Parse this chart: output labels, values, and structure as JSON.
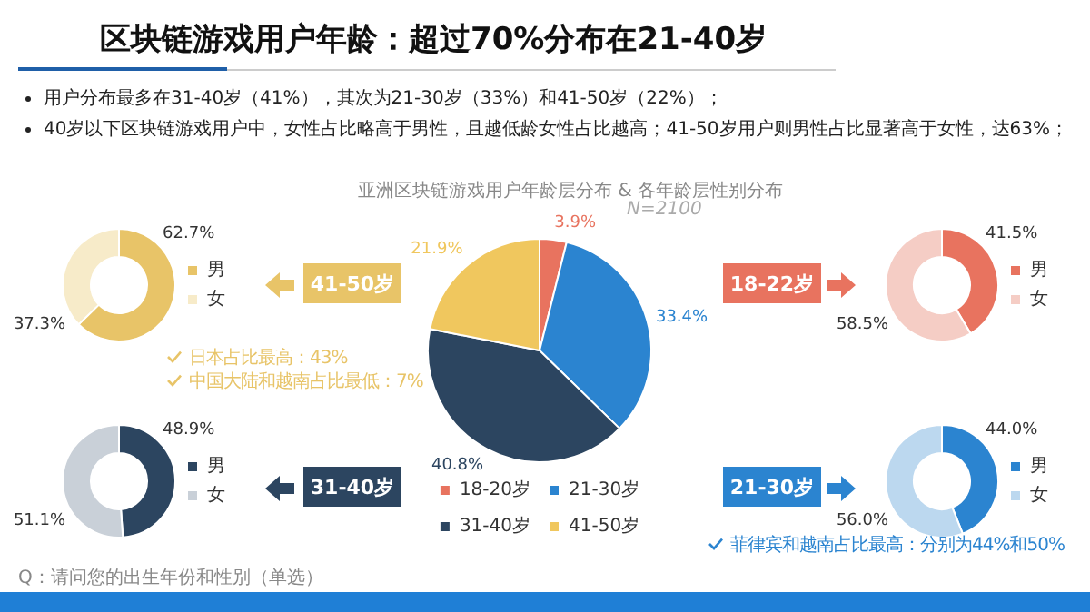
{
  "chart_data": [
    {
      "type": "pie",
      "title": "区块链游戏用户年龄：超过70%分布在21-40岁",
      "subtitle": "亚洲区块链游戏用户年龄层分布 & 各年龄层性别分布",
      "categories": [
        "18-20岁",
        "21-30岁",
        "31-40岁",
        "41-50岁"
      ],
      "values": [
        3.9,
        33.4,
        40.8,
        21.9
      ],
      "colors": [
        "#e8735f",
        "#2b84d0",
        "#2c4560",
        "#f0c75e"
      ],
      "value_labels": [
        "3.9%",
        "33.4%",
        "40.8%",
        "21.9%"
      ],
      "legend": "bottom",
      "annotations": [
        "用户分布最多在31-40岁（41%），其次为21-30岁（33%）和41-50岁（22%）；",
        "40岁以下区块链游戏用户中，女性占比略高于男性，且越低龄女性占比越高；41-50岁用户则男性占比显著高于女性，达63%；",
        "N=2100",
        "Q：请问您的出生年份和性别（单选）"
      ]
    },
    {
      "type": "donut",
      "title": "41-50岁",
      "categories": [
        "男",
        "女"
      ],
      "values": [
        62.7,
        37.3
      ],
      "colors": [
        "#e8c468",
        "#f7ebc9"
      ],
      "value_labels": [
        "62.7%",
        "37.3%"
      ],
      "legend": "right",
      "annotations": [
        "日本占比最高：43%",
        "中国大陆和越南占比最低：7%"
      ]
    },
    {
      "type": "donut",
      "title": "18-22岁",
      "categories": [
        "男",
        "女"
      ],
      "values": [
        41.5,
        58.5
      ],
      "colors": [
        "#e8735f",
        "#f5cdc5"
      ],
      "value_labels": [
        "41.5%",
        "58.5%"
      ],
      "legend": "right"
    },
    {
      "type": "donut",
      "title": "31-40岁",
      "categories": [
        "男",
        "女"
      ],
      "values": [
        48.9,
        51.1
      ],
      "colors": [
        "#2c4560",
        "#c9d0d8"
      ],
      "value_labels": [
        "48.9%",
        "51.1%"
      ],
      "legend": "right"
    },
    {
      "type": "donut",
      "title": "21-30岁",
      "categories": [
        "男",
        "女"
      ],
      "values": [
        44.0,
        56.0
      ],
      "colors": [
        "#2b84d0",
        "#bcd8ef"
      ],
      "value_labels": [
        "44.0%",
        "56.0%"
      ],
      "legend": "right",
      "annotations": [
        "菲律宾和越南占比最高：分别为44%和50%"
      ]
    }
  ]
}
